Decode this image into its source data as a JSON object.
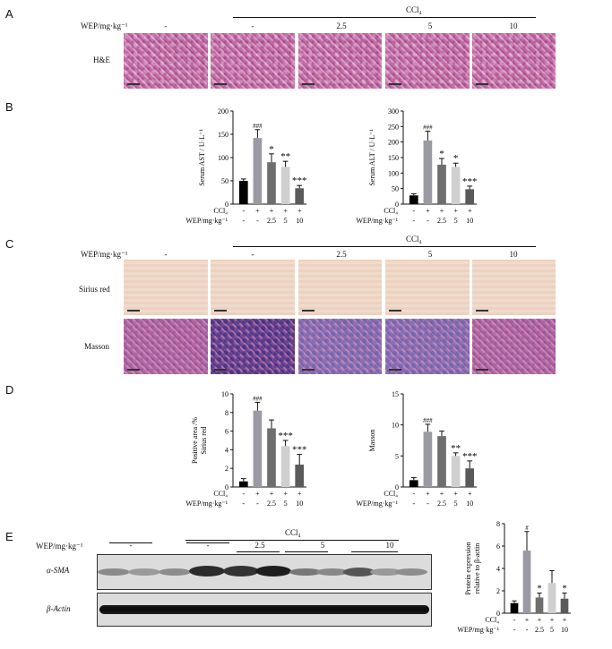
{
  "panels": {
    "A": "A",
    "B": "B",
    "C": "C",
    "D": "D",
    "E": "E"
  },
  "treatment": {
    "dose_label": "WEP/mg·kg⁻¹",
    "ccl4_label": "CCl₄",
    "groups": [
      "-",
      "-",
      "2.5",
      "5",
      "10"
    ],
    "ccl4_signs": [
      "-",
      "+",
      "+",
      "+",
      "+"
    ]
  },
  "panel_A": {
    "row_label": "H&E"
  },
  "panel_C": {
    "row_labels": [
      "Sirius red",
      "Masson"
    ]
  },
  "panel_E": {
    "dose_label": "WEP/mg·kg⁻¹",
    "ccl4_label": "CCl₄",
    "groups": [
      "-",
      "-",
      "2.5",
      "5",
      "10"
    ],
    "bands": [
      "α-SMA",
      "β-Actin"
    ]
  },
  "chart_data": [
    {
      "id": "ast",
      "type": "bar",
      "ylabel": "Serum AST / U·L⁻¹",
      "ylim": [
        0,
        200
      ],
      "yticks": [
        0,
        50,
        100,
        150,
        200
      ],
      "values": [
        50,
        142,
        90,
        80,
        34
      ],
      "errors": [
        4,
        18,
        18,
        12,
        6
      ],
      "annotations": [
        "",
        "###",
        "*",
        "**",
        "***"
      ],
      "colors": [
        "#000000",
        "#9a9aa3",
        "#6e6e6e",
        "#cfcfcf",
        "#5a5a5a"
      ]
    },
    {
      "id": "alt",
      "type": "bar",
      "ylabel": "Serum ALT / U·L⁻¹",
      "ylim": [
        0,
        300
      ],
      "yticks": [
        0,
        50,
        100,
        150,
        200,
        250,
        300
      ],
      "values": [
        28,
        205,
        127,
        120,
        48
      ],
      "errors": [
        5,
        30,
        20,
        12,
        10
      ],
      "annotations": [
        "",
        "###",
        "*",
        "*",
        "***"
      ],
      "colors": [
        "#000000",
        "#9a9aa3",
        "#6e6e6e",
        "#cfcfcf",
        "#5a5a5a"
      ]
    },
    {
      "id": "sirius",
      "type": "bar",
      "ylabel": "Positive area /% Sirius red",
      "ylim": [
        0,
        10
      ],
      "yticks": [
        0,
        2,
        4,
        6,
        8,
        10
      ],
      "values": [
        0.6,
        8.2,
        6.3,
        4.4,
        2.4
      ],
      "errors": [
        0.3,
        0.9,
        0.9,
        0.6,
        1.1
      ],
      "annotations": [
        "",
        "###",
        "",
        "***",
        "***"
      ],
      "colors": [
        "#000000",
        "#9a9aa3",
        "#6e6e6e",
        "#cfcfcf",
        "#5a5a5a"
      ]
    },
    {
      "id": "masson",
      "type": "bar",
      "ylabel": "Masson",
      "ylim": [
        0,
        15
      ],
      "yticks": [
        0,
        5,
        10,
        15
      ],
      "values": [
        1.1,
        8.9,
        8.2,
        5.0,
        3.0
      ],
      "errors": [
        0.4,
        1.2,
        0.8,
        0.5,
        1.2
      ],
      "annotations": [
        "",
        "###",
        "",
        "**",
        "***"
      ],
      "colors": [
        "#000000",
        "#9a9aa3",
        "#6e6e6e",
        "#cfcfcf",
        "#5a5a5a"
      ]
    },
    {
      "id": "protein",
      "type": "bar",
      "ylabel": "Protein expression relative to β-actin",
      "ylim": [
        0,
        8
      ],
      "yticks": [
        0,
        2,
        4,
        6,
        8
      ],
      "values": [
        0.9,
        5.6,
        1.4,
        2.7,
        1.3
      ],
      "errors": [
        0.2,
        1.7,
        0.4,
        1.1,
        0.5
      ],
      "annotations": [
        "",
        "#",
        "*",
        "",
        "*"
      ],
      "colors": [
        "#000000",
        "#9a9aa3",
        "#6e6e6e",
        "#cfcfcf",
        "#5a5a5a"
      ]
    }
  ]
}
